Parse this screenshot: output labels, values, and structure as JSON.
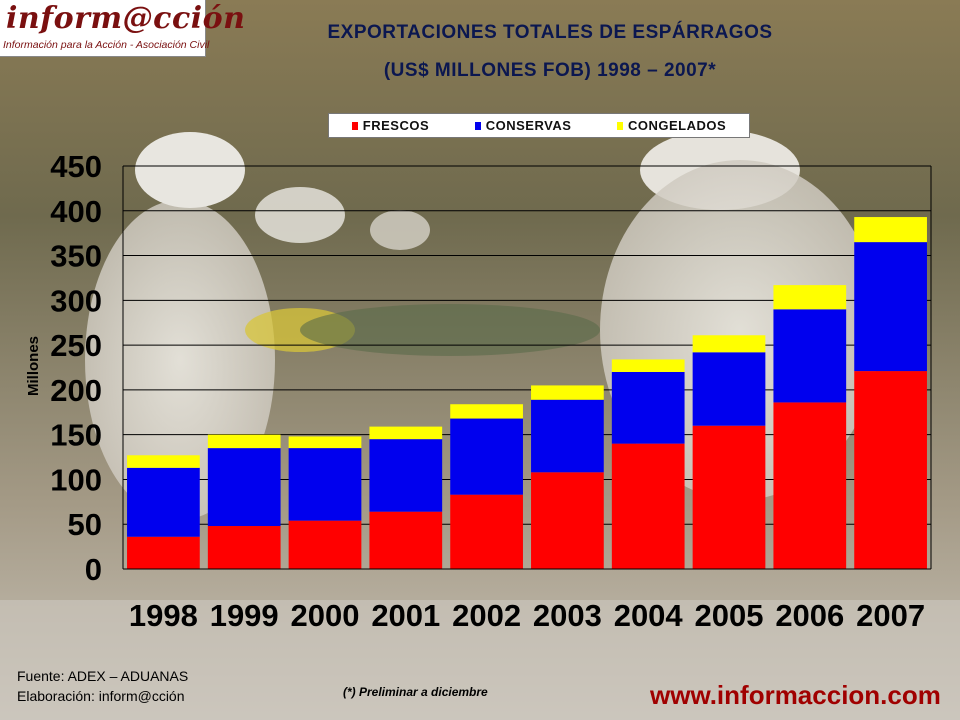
{
  "logo": {
    "wordmark": "inform@cción",
    "tagline": "Información para la Acción - Asociación Civil"
  },
  "colors": {
    "frescos": "#ff0000",
    "conservas": "#0000ee",
    "congelados": "#ffff00",
    "title": "#0b1750",
    "web": "#a00000"
  },
  "chart_data": {
    "type": "bar",
    "stacked": true,
    "title": "EXPORTACIONES TOTALES DE ESPÁRRAGOS",
    "subtitle": "(US$ MILLONES FOB) 1998 – 2007*",
    "ylabel": "Millones",
    "xlabel": "",
    "ylim": [
      0,
      450
    ],
    "yticks": [
      "0",
      "50",
      "100",
      "150",
      "200",
      "250",
      "300",
      "350",
      "400",
      "450"
    ],
    "grid": true,
    "legend_position": "top",
    "categories": [
      "1998",
      "1999",
      "2000",
      "2001",
      "2002",
      "2003",
      "2004",
      "2005",
      "2006",
      "2007"
    ],
    "series": [
      {
        "name": "FRESCOS",
        "values": [
          36,
          48,
          54,
          64,
          83,
          108,
          140,
          160,
          186,
          221
        ]
      },
      {
        "name": "CONSERVAS",
        "values": [
          77,
          87,
          81,
          81,
          85,
          81,
          80,
          82,
          104,
          144
        ]
      },
      {
        "name": "CONGELADOS",
        "values": [
          14,
          15,
          13,
          14,
          16,
          16,
          14,
          19,
          27,
          28
        ]
      }
    ]
  },
  "footer": {
    "source": "Fuente: ADEX – ADUANAS",
    "credit": "Elaboración: inform@cción",
    "note": "(*) Preliminar a diciembre",
    "website": "www.informaccion.com"
  }
}
